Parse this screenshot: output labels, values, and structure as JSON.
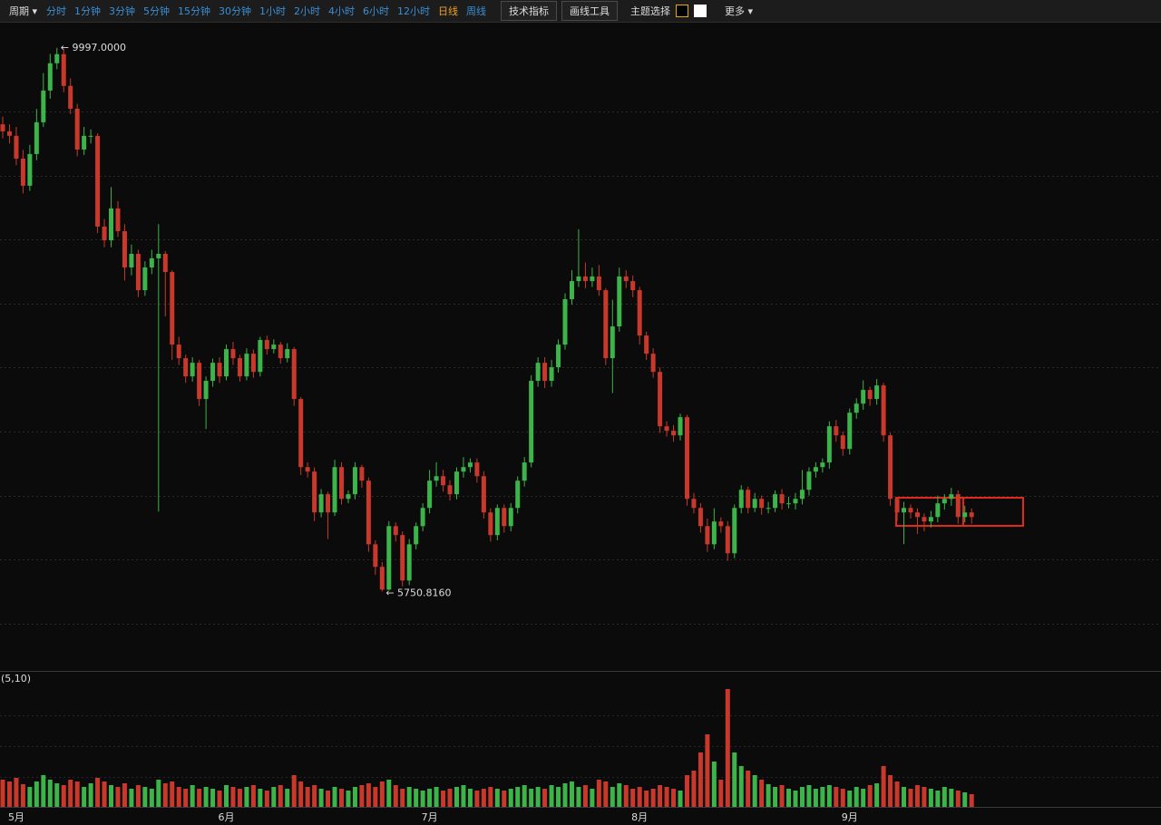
{
  "toolbar": {
    "period": "周期 ▾",
    "intervals": [
      "分时",
      "1分钟",
      "3分钟",
      "5分钟",
      "15分钟",
      "30分钟",
      "1小时",
      "2小时",
      "4小时",
      "6小时",
      "12小时",
      "日线",
      "周线"
    ],
    "indicators": "技术指标",
    "drawing_tools": "画线工具",
    "theme": "主题选择",
    "more": "更多 ▾"
  },
  "chart_data": {
    "type": "candlestick",
    "categories": [
      null,
      null,
      "5月",
      null,
      null,
      null,
      null,
      null,
      null,
      null,
      null,
      null,
      null,
      null,
      null,
      null,
      null,
      null,
      null,
      null,
      null,
      null,
      null,
      null,
      null,
      null,
      null,
      null,
      null,
      null,
      null,
      null,
      null,
      "6月",
      null,
      null,
      null,
      null,
      null,
      null,
      null,
      null,
      null,
      null,
      null,
      null,
      null,
      null,
      null,
      null,
      null,
      null,
      null,
      null,
      null,
      null,
      null,
      null,
      null,
      null,
      null,
      null,
      null,
      "7月",
      null,
      null,
      null,
      null,
      null,
      null,
      null,
      null,
      null,
      null,
      null,
      null,
      null,
      null,
      null,
      null,
      null,
      null,
      null,
      null,
      null,
      null,
      null,
      null,
      null,
      null,
      null,
      null,
      null,
      null,
      "8月",
      null,
      null,
      null,
      null,
      null,
      null,
      null,
      null,
      null,
      null,
      null,
      null,
      null,
      null,
      null,
      null,
      null,
      null,
      null,
      null,
      null,
      null,
      null,
      null,
      null,
      null,
      null,
      null,
      null,
      null,
      "9月",
      null,
      null,
      null,
      null,
      null,
      null,
      null,
      null,
      null,
      null,
      null,
      null,
      null,
      null,
      null,
      null,
      null,
      null
    ],
    "open": [
      9400,
      9345,
      9310,
      9132,
      8920,
      9168,
      9416,
      9664,
      9877,
      9948,
      9700,
      9522,
      9203,
      9310,
      9310,
      8601,
      8494,
      8743,
      8565,
      8282,
      8388,
      8104,
      8282,
      8353,
      8388,
      8246,
      7679,
      7573,
      7431,
      7537,
      7254,
      7396,
      7537,
      7431,
      7644,
      7573,
      7431,
      7608,
      7466,
      7715,
      7644,
      7679,
      7573,
      7644,
      7254,
      6722,
      6687,
      6368,
      6510,
      6368,
      6722,
      6474,
      6510,
      6722,
      6616,
      6119,
      5943,
      5765,
      6261,
      6191,
      5836,
      6119,
      6261,
      6403,
      6616,
      6651,
      6580,
      6510,
      6687,
      6722,
      6758,
      6651,
      6368,
      6191,
      6403,
      6261,
      6403,
      6616,
      6758,
      7396,
      7537,
      7396,
      7502,
      7679,
      8034,
      8175,
      8211,
      8175,
      8211,
      8104,
      7573,
      7821,
      8211,
      8175,
      8104,
      7750,
      7608,
      7466,
      7041,
      7006,
      6970,
      7112,
      6474,
      6403,
      6261,
      6119,
      6297,
      6261,
      6049,
      6403,
      6545,
      6403,
      6474,
      6403,
      6403,
      6510,
      6439,
      6439,
      6474,
      6545,
      6687,
      6722,
      6758,
      7041,
      6970,
      6864,
      7147,
      7218,
      7325,
      7254,
      7360,
      6970,
      6474,
      6368,
      6403,
      6368,
      6332,
      6297,
      6332,
      6439,
      6474,
      6510,
      6332,
      6368
    ],
    "high": [
      9460,
      9400,
      9380,
      9200,
      9240,
      9520,
      9800,
      9950,
      9997,
      9990,
      9760,
      9560,
      9380,
      9360,
      9330,
      8660,
      8910,
      8800,
      8620,
      8460,
      8420,
      8330,
      8420,
      8620,
      8410,
      8260,
      7740,
      7600,
      7580,
      7560,
      7430,
      7570,
      7580,
      7680,
      7700,
      7600,
      7650,
      7640,
      7740,
      7750,
      7720,
      7700,
      7690,
      7660,
      7270,
      6760,
      6720,
      6550,
      6530,
      6780,
      6760,
      6540,
      6760,
      6740,
      6640,
      6150,
      5980,
      6300,
      6290,
      6220,
      6160,
      6290,
      6440,
      6700,
      6760,
      6700,
      6620,
      6720,
      6800,
      6790,
      6790,
      6690,
      6400,
      6430,
      6430,
      6440,
      6650,
      6800,
      7440,
      7580,
      7580,
      7560,
      7720,
      8080,
      8260,
      8580,
      8320,
      8280,
      8300,
      8120,
      8030,
      8280,
      8260,
      8220,
      8130,
      7780,
      7650,
      7500,
      7080,
      7050,
      7140,
      7130,
      6520,
      6440,
      6320,
      6400,
      6330,
      6300,
      6430,
      6580,
      6570,
      6520,
      6500,
      6450,
      6540,
      6550,
      6490,
      6520,
      6700,
      6720,
      6760,
      6790,
      7080,
      7090,
      7000,
      7180,
      7260,
      7400,
      7350,
      7410,
      7380,
      6990,
      6490,
      6450,
      6430,
      6400,
      6360,
      6380,
      6500,
      6510,
      6560,
      6540,
      6420,
      6400
    ],
    "low": [
      9290,
      9250,
      9080,
      8860,
      8880,
      9120,
      9380,
      9600,
      9830,
      9650,
      9480,
      9150,
      9160,
      9250,
      8550,
      8440,
      8440,
      8520,
      8180,
      8220,
      8050,
      8060,
      8230,
      6375,
      7900,
      7560,
      7520,
      7380,
      7390,
      7200,
      7020,
      7350,
      7380,
      7400,
      7520,
      7390,
      7400,
      7420,
      7430,
      7600,
      7610,
      7530,
      7540,
      7200,
      6660,
      6640,
      6300,
      6330,
      6160,
      6340,
      6430,
      6440,
      6470,
      6560,
      6060,
      5880,
      5750.816,
      5758,
      6140,
      5790,
      5800,
      6080,
      6220,
      6360,
      6570,
      6530,
      6460,
      6470,
      6640,
      6680,
      6600,
      6320,
      6140,
      6150,
      6210,
      6220,
      6360,
      6570,
      6720,
      7350,
      7340,
      7350,
      7460,
      7640,
      7990,
      8130,
      8120,
      8130,
      8060,
      7520,
      7300,
      7780,
      8120,
      8050,
      7680,
      7560,
      7420,
      6990,
      6960,
      6920,
      6930,
      6420,
      6360,
      6210,
      6060,
      6080,
      6210,
      5990,
      6010,
      6360,
      6360,
      6370,
      6350,
      6360,
      6370,
      6390,
      6400,
      6390,
      6430,
      6500,
      6640,
      6680,
      6710,
      6920,
      6810,
      6820,
      7100,
      7170,
      7200,
      7210,
      6920,
      6420,
      6300,
      6120,
      6320,
      6200,
      6220,
      6250,
      6290,
      6390,
      6420,
      6280,
      6290,
      6280
    ],
    "close": [
      9345,
      9310,
      9132,
      8920,
      9168,
      9416,
      9664,
      9877,
      9948,
      9700,
      9522,
      9203,
      9310,
      9310,
      8601,
      8494,
      8743,
      8565,
      8282,
      8388,
      8104,
      8282,
      8353,
      8388,
      8246,
      7679,
      7573,
      7431,
      7537,
      7254,
      7396,
      7537,
      7431,
      7644,
      7573,
      7431,
      7608,
      7466,
      7715,
      7644,
      7679,
      7573,
      7644,
      7254,
      6722,
      6687,
      6368,
      6510,
      6368,
      6722,
      6474,
      6510,
      6722,
      6616,
      6119,
      5943,
      5765,
      6261,
      6191,
      5836,
      6119,
      6261,
      6403,
      6616,
      6651,
      6580,
      6510,
      6687,
      6722,
      6758,
      6651,
      6368,
      6191,
      6403,
      6261,
      6403,
      6616,
      6758,
      7396,
      7537,
      7396,
      7502,
      7679,
      8034,
      8175,
      8211,
      8175,
      8211,
      8104,
      7573,
      7821,
      8211,
      8175,
      8104,
      7750,
      7608,
      7466,
      7041,
      7006,
      6970,
      7112,
      6474,
      6403,
      6261,
      6119,
      6297,
      6261,
      6049,
      6403,
      6545,
      6403,
      6474,
      6403,
      6403,
      6510,
      6439,
      6439,
      6474,
      6545,
      6687,
      6722,
      6758,
      7041,
      6970,
      6864,
      7147,
      7218,
      7325,
      7254,
      7360,
      6970,
      6474,
      6368,
      6403,
      6368,
      6332,
      6297,
      6332,
      6439,
      6474,
      6510,
      6332,
      6368,
      6332
    ],
    "volume": [
      30,
      28,
      32,
      25,
      22,
      28,
      35,
      30,
      26,
      24,
      30,
      28,
      22,
      26,
      32,
      28,
      24,
      22,
      26,
      20,
      24,
      22,
      20,
      30,
      26,
      28,
      22,
      20,
      24,
      20,
      22,
      20,
      18,
      24,
      22,
      20,
      22,
      24,
      20,
      18,
      22,
      24,
      20,
      35,
      28,
      22,
      24,
      20,
      18,
      22,
      20,
      18,
      22,
      24,
      26,
      22,
      28,
      30,
      24,
      20,
      22,
      20,
      18,
      20,
      22,
      18,
      20,
      22,
      24,
      20,
      18,
      20,
      22,
      20,
      18,
      20,
      22,
      24,
      20,
      22,
      20,
      24,
      22,
      26,
      28,
      22,
      24,
      20,
      30,
      28,
      22,
      26,
      24,
      20,
      22,
      18,
      20,
      24,
      22,
      20,
      18,
      35,
      40,
      60,
      80,
      50,
      30,
      130,
      60,
      45,
      40,
      35,
      30,
      25,
      22,
      24,
      20,
      18,
      22,
      24,
      20,
      22,
      24,
      22,
      20,
      18,
      22,
      20,
      24,
      26,
      45,
      35,
      28,
      22,
      20,
      24,
      22,
      20,
      18,
      22,
      20,
      18,
      16,
      14
    ],
    "up_color": "#3cb44a",
    "down_color": "#c9392b",
    "ylim": [
      5130,
      10180
    ],
    "yticks": [
      5500,
      6000,
      6500,
      7000,
      7500,
      8000,
      8500,
      9000,
      9500
    ],
    "grid": true,
    "volume_ylim": [
      0,
      150
    ],
    "volume_label": "(5,10)",
    "max_label": "← 9997.0000",
    "min_label": "← 5750.8160"
  }
}
